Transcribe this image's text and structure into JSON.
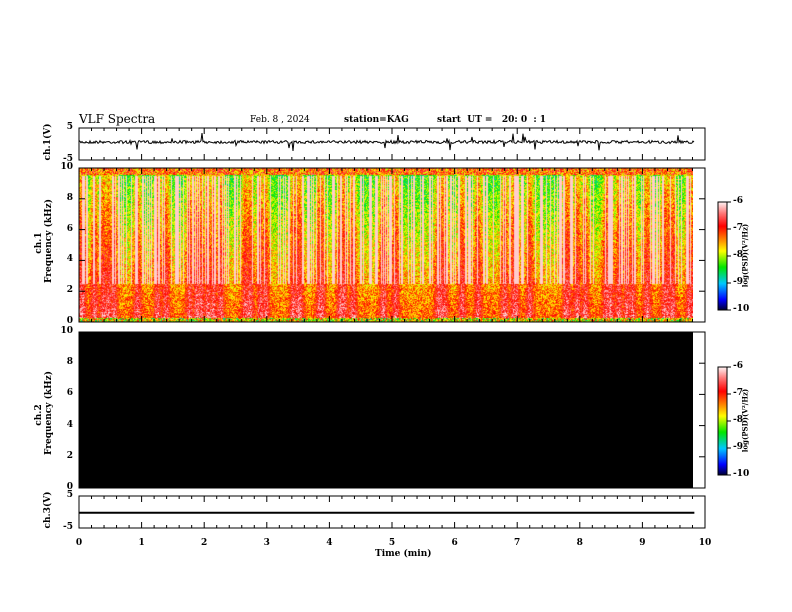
{
  "header": {
    "title": "VLF Spectra",
    "date": "Feb. 8 , 2024",
    "station": "station=KAG",
    "start": "start  UT =   20: 0  : 1"
  },
  "chart_data": [
    {
      "type": "line",
      "name": "ch1 waveform",
      "ylabel": "ch.1(V)",
      "ylim": [
        -5,
        5
      ],
      "yticks": [
        "5",
        "-5"
      ],
      "baseline": 0
    },
    {
      "type": "heatmap",
      "name": "ch1 spectrogram",
      "ylabel": "Frequency (kHz)",
      "panel_label": "ch.1",
      "ylim": [
        0,
        10
      ],
      "yticks": [
        "0",
        "2",
        "4",
        "6",
        "8",
        "10"
      ],
      "colorbar": {
        "label": "log(PSD)(V²/Hz)",
        "range": [
          -10,
          -6
        ],
        "ticks": [
          "-6",
          "-7",
          "-8",
          "-9",
          "-10"
        ]
      }
    },
    {
      "type": "heatmap",
      "name": "ch2 spectrogram",
      "ylabel": "Frequency (kHz)",
      "panel_label": "ch.2",
      "ylim": [
        0,
        10
      ],
      "yticks": [
        "0",
        "2",
        "4",
        "6",
        "8",
        "10"
      ],
      "fill": "#000000",
      "colorbar": {
        "label": "log(PSD)(V²/Hz)",
        "range": [
          -10,
          -6
        ],
        "ticks": [
          "-6",
          "-7",
          "-8",
          "-9",
          "-10"
        ]
      }
    },
    {
      "type": "line",
      "name": "ch3 waveform",
      "ylabel": "ch.3(V)",
      "ylim": [
        -5,
        5
      ],
      "yticks": [
        "5",
        "-5"
      ],
      "baseline": -1.5
    },
    {
      "xlabel": "Time  (min)",
      "xlim": [
        0,
        10
      ],
      "xticks": [
        "0",
        "1",
        "2",
        "3",
        "4",
        "5",
        "6",
        "7",
        "8",
        "9",
        "10"
      ],
      "data_end_min": 9.83
    }
  ]
}
